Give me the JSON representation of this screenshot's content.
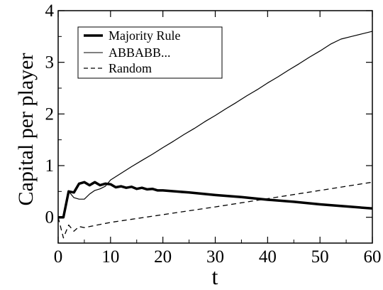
{
  "chart_data": {
    "type": "line",
    "xlabel": "t",
    "ylabel": "Capital per player",
    "xlim": [
      0,
      60
    ],
    "ylim": [
      -0.5,
      4
    ],
    "xticks": [
      0,
      10,
      20,
      30,
      40,
      50,
      60
    ],
    "yticks": [
      0,
      1,
      2,
      3,
      4
    ],
    "grid": false,
    "legend_position": "top-left",
    "series": [
      {
        "name": "Majority Rule",
        "style": "thick-solid",
        "color": "#000000",
        "x": [
          0,
          1,
          2,
          3,
          4,
          5,
          6,
          7,
          8,
          9,
          10,
          11,
          12,
          13,
          14,
          15,
          16,
          17,
          18,
          19,
          20,
          25,
          30,
          35,
          40,
          45,
          50,
          55,
          60
        ],
        "y": [
          0,
          0,
          0.5,
          0.48,
          0.65,
          0.68,
          0.62,
          0.68,
          0.62,
          0.65,
          0.64,
          0.58,
          0.6,
          0.57,
          0.59,
          0.55,
          0.57,
          0.54,
          0.55,
          0.52,
          0.52,
          0.48,
          0.43,
          0.39,
          0.34,
          0.3,
          0.25,
          0.21,
          0.17
        ]
      },
      {
        "name": "ABBABB...",
        "style": "thin-solid",
        "color": "#000000",
        "x": [
          0,
          1,
          2,
          3,
          4,
          5,
          6,
          7,
          8,
          9,
          10,
          12,
          14,
          16,
          18,
          20,
          22,
          24,
          26,
          28,
          30,
          32,
          34,
          36,
          38,
          40,
          42,
          44,
          46,
          48,
          50,
          52,
          54,
          56,
          58,
          60
        ],
        "y": [
          0,
          0,
          0.5,
          0.38,
          0.35,
          0.35,
          0.45,
          0.52,
          0.55,
          0.6,
          0.72,
          0.85,
          0.98,
          1.1,
          1.22,
          1.35,
          1.47,
          1.6,
          1.72,
          1.85,
          1.97,
          2.1,
          2.22,
          2.35,
          2.47,
          2.6,
          2.72,
          2.85,
          2.97,
          3.1,
          3.22,
          3.35,
          3.45,
          3.5,
          3.55,
          3.6
        ]
      },
      {
        "name": "Random",
        "style": "dashed",
        "color": "#000000",
        "x": [
          0,
          1,
          2,
          3,
          4,
          5,
          10,
          20,
          30,
          40,
          50,
          60
        ],
        "y": [
          0,
          -0.4,
          -0.15,
          -0.27,
          -0.18,
          -0.2,
          -0.1,
          0.05,
          0.2,
          0.36,
          0.52,
          0.68
        ]
      }
    ]
  }
}
